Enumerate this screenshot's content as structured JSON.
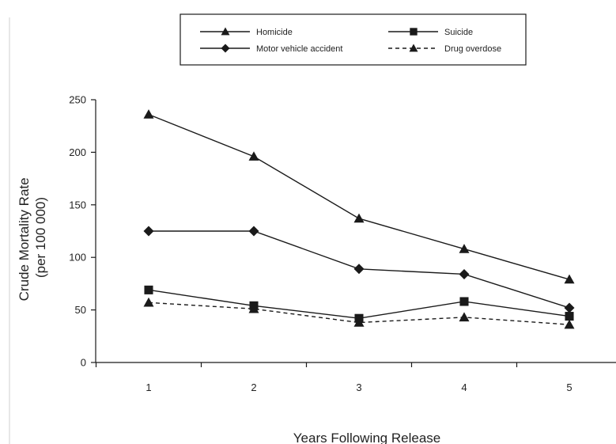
{
  "chart_data": {
    "type": "line",
    "title": "",
    "xlabel": "Years Following Release",
    "ylabel_lines": [
      "Crude Mortality Rate",
      "(per 100 000)"
    ],
    "x": [
      1,
      2,
      3,
      4,
      5
    ],
    "x_tick_labels": [
      "1",
      "2",
      "3",
      "4",
      "5"
    ],
    "y_ticks": [
      0,
      50,
      100,
      150,
      200,
      250
    ],
    "y_tick_labels": [
      "0",
      "50",
      "100",
      "150",
      "200",
      "250"
    ],
    "ylim": [
      0,
      250
    ],
    "grid": false,
    "legend_position": "top-center",
    "series": [
      {
        "name": "Homicide",
        "values": [
          236,
          196,
          137,
          108,
          79
        ],
        "marker": "triangle",
        "dash": "solid",
        "color": "#1a1a1a"
      },
      {
        "name": "Suicide",
        "values": [
          69,
          54,
          42,
          58,
          44
        ],
        "marker": "square",
        "dash": "solid",
        "color": "#1a1a1a"
      },
      {
        "name": "Motor vehicle accident",
        "values": [
          125,
          125,
          89,
          84,
          52
        ],
        "marker": "diamond",
        "dash": "solid",
        "color": "#1a1a1a"
      },
      {
        "name": "Drug overdose",
        "values": [
          57,
          51,
          38,
          43,
          36
        ],
        "marker": "triangle",
        "dash": "dashed",
        "color": "#1a1a1a"
      }
    ]
  }
}
